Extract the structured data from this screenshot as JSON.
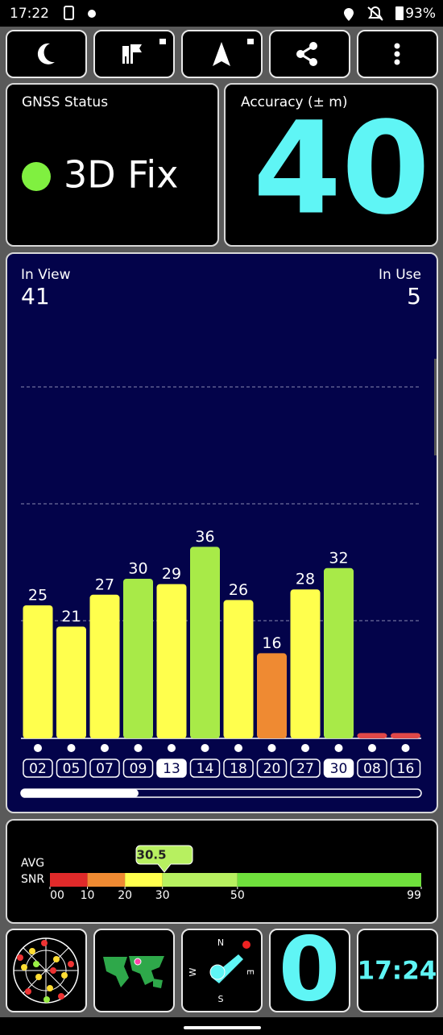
{
  "status_bar": {
    "time": "17:22",
    "battery": "93%"
  },
  "gnss_status": {
    "title": "GNSS Status",
    "fix": "3D Fix"
  },
  "accuracy": {
    "title": "Accuracy (± m)",
    "value": 40
  },
  "chart_data": {
    "type": "bar",
    "in_view_label": "In View",
    "in_view": 41,
    "in_use_label": "In Use",
    "in_use": 5,
    "categories": [
      "02",
      "05",
      "07",
      "09",
      "13",
      "14",
      "18",
      "20",
      "27",
      "30",
      "08",
      "16"
    ],
    "values": [
      25,
      21,
      27,
      30,
      29,
      36,
      26,
      16,
      28,
      32,
      1,
      1
    ],
    "value_labels": [
      "25",
      "21",
      "27",
      "30",
      "29",
      "36",
      "26",
      "16",
      "28",
      "32",
      null,
      null
    ],
    "colors": [
      "#ffff4d",
      "#ffff4d",
      "#ffff4d",
      "#a8ea48",
      "#ffff4d",
      "#a8ea48",
      "#ffff4d",
      "#ef8a32",
      "#ffff4d",
      "#a8ea48",
      "#e04848",
      "#e04848"
    ],
    "used": [
      false,
      false,
      false,
      false,
      true,
      false,
      false,
      false,
      false,
      true,
      false,
      false
    ],
    "ylim": [
      0,
      70
    ]
  },
  "snr": {
    "label_lines": [
      "AVG",
      "SNR"
    ],
    "average": 30.5,
    "xlim": [
      0,
      99
    ],
    "xticks": [
      {
        "value": 0,
        "label": "00"
      },
      10,
      20,
      30,
      50,
      99
    ],
    "segment_colors": [
      "#e02a2a",
      "#ef8a32",
      "#ffff4d",
      "#b7f060",
      "#6fe03c"
    ]
  },
  "widgets": {
    "compass": [
      "N",
      "E",
      "S",
      "W"
    ],
    "count": 0,
    "clock": "17:24"
  }
}
